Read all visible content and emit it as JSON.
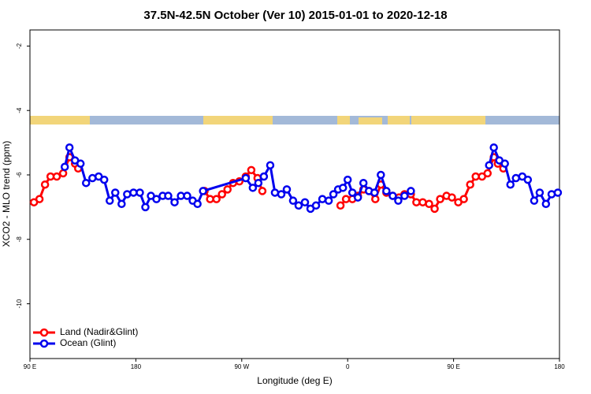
{
  "chart_data": {
    "type": "line",
    "title": "37.5N-42.5N October (Ver 10)   2015-01-01 to 2020-12-18",
    "x_label": "Longitude (deg E)",
    "y_label": "XCO2 - MLO trend (ppm)",
    "xlim": [
      90,
      540
    ],
    "xticks": [
      {
        "value": 90,
        "label": "90 E"
      },
      180,
      {
        "value": 270,
        "label": "90 W"
      },
      {
        "value": 360,
        "label": "0"
      },
      {
        "value": 450,
        "label": "90 E"
      },
      {
        "value": 540,
        "label": "180"
      }
    ],
    "ylim": [
      -11.7,
      -1.5
    ],
    "yticks": [
      -2,
      -4,
      -6,
      -8,
      -10
    ],
    "legend": "lower left",
    "series": [
      {
        "name": "Land (Nadir&Glint)",
        "color": "#ff0000",
        "x": [
          93.4,
          98.1,
          102.8,
          107.5,
          112.8,
          118.2,
          123.6,
          128.3,
          131.0,
          200,
          238.4,
          243.1,
          248.5,
          253.2,
          257.9,
          262.6,
          268.0,
          273.4,
          278.1,
          283.4,
          287.5,
          320,
          353.9,
          358.6,
          364.0,
          368.7,
          373.4,
          378.1,
          383.5,
          388.2,
          392.9,
          398.3,
          403.6,
          408.3,
          413.7,
          418.4,
          423.8,
          429.2,
          433.9,
          438.6,
          444.0,
          448.6,
          454.0,
          458.7,
          464.1,
          468.8,
          474.2,
          478.9,
          484.2,
          487.6,
          492.3
        ],
        "values": [
          -6.85,
          -6.75,
          -6.3,
          -6.05,
          -6.05,
          -5.95,
          -5.45,
          -5.65,
          -5.8,
          null,
          -6.5,
          -6.75,
          -6.75,
          -6.6,
          -6.45,
          -6.25,
          -6.2,
          -6.05,
          -5.85,
          -6.1,
          -6.5,
          null,
          -6.95,
          -6.75,
          -6.75,
          -6.65,
          -6.45,
          -6.5,
          -6.75,
          -6.3,
          -6.55,
          -6.65,
          -6.7,
          -6.6,
          -6.6,
          -6.85,
          -6.85,
          -6.9,
          -7.05,
          -6.75,
          -6.65,
          -6.7,
          -6.85,
          -6.75,
          -6.3,
          -6.05,
          -6.05,
          -5.95,
          -5.45,
          -5.65,
          -5.8
        ]
      },
      {
        "name": "Ocean (Glint)",
        "color": "#0000ee",
        "x": [
          119.6,
          123.6,
          128.3,
          133.0,
          137.7,
          143.1,
          148.4,
          153.1,
          157.8,
          162.5,
          167.9,
          172.6,
          178.0,
          183.4,
          188.1,
          192.8,
          197.5,
          202.8,
          207.5,
          212.9,
          218.3,
          223.6,
          228.3,
          232.4,
          237.1,
          273.4,
          279.4,
          284.1,
          288.8,
          294.2,
          298.2,
          303.6,
          308.3,
          313.6,
          318.3,
          323.7,
          328.4,
          333.1,
          338.5,
          343.9,
          347.9,
          351.9,
          356.0,
          360.0,
          364.0,
          368.7,
          373.4,
          378.1,
          382.8,
          388.2,
          392.9,
          398.3,
          403.0,
          408.3,
          413.7,
          450,
          480.2,
          484.2,
          488.9,
          493.6,
          498.3,
          503.0,
          508.4,
          513.1,
          518.5,
          523.2,
          528.5,
          533.3,
          538.6
        ],
        "values": [
          -5.75,
          -5.15,
          -5.55,
          -5.65,
          -6.25,
          -6.1,
          -6.05,
          -6.15,
          -6.8,
          -6.55,
          -6.9,
          -6.6,
          -6.55,
          -6.55,
          -7.0,
          -6.65,
          -6.75,
          -6.65,
          -6.65,
          -6.85,
          -6.65,
          -6.65,
          -6.8,
          -6.9,
          -6.5,
          -6.1,
          -6.4,
          -6.25,
          -6.05,
          -5.7,
          -6.55,
          -6.6,
          -6.45,
          -6.8,
          -6.95,
          -6.85,
          -7.05,
          -6.95,
          -6.75,
          -6.8,
          -6.6,
          -6.45,
          -6.4,
          -6.15,
          -6.55,
          -6.7,
          -6.25,
          -6.5,
          -6.55,
          -6.0,
          -6.5,
          -6.65,
          -6.8,
          -6.65,
          -6.5,
          null,
          -5.7,
          -5.15,
          -5.55,
          -5.65,
          -6.3,
          -6.1,
          -6.05,
          -6.15,
          -6.8,
          -6.55,
          -6.9,
          -6.6,
          -6.55
        ]
      }
    ]
  }
}
